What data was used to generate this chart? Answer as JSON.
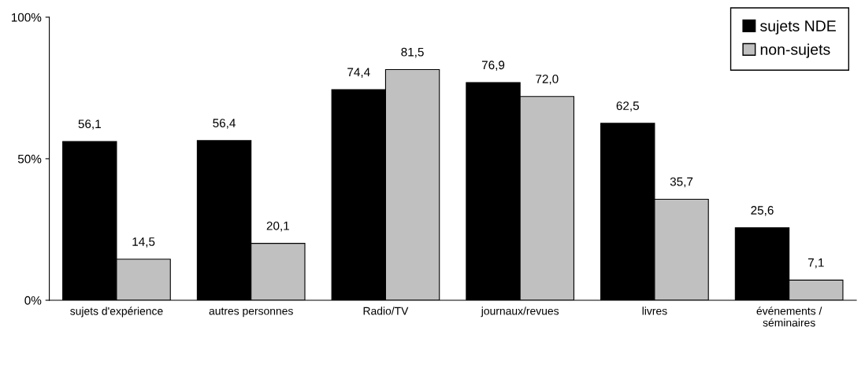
{
  "chart_data": {
    "type": "bar",
    "categories": [
      "sujets d'expérience",
      "autres personnes",
      "Radio/TV",
      "journaux/revues",
      "livres",
      "événements /\nséminaires"
    ],
    "series": [
      {
        "name": "sujets NDE",
        "color": "#000000",
        "values": [
          56.1,
          56.4,
          74.4,
          76.9,
          62.5,
          25.6
        ],
        "value_labels": [
          "56,1",
          "56,4",
          "74,4",
          "76,9",
          "62,5",
          "25,6"
        ]
      },
      {
        "name": "non-sujets",
        "color": "#c0c0c0",
        "values": [
          14.5,
          20.1,
          81.5,
          72.0,
          35.7,
          7.1
        ],
        "value_labels": [
          "14,5",
          "20,1",
          "81,5",
          "72,0",
          "35,7",
          "7,1"
        ]
      }
    ],
    "ylim": [
      0,
      100
    ],
    "yticks": [
      {
        "value": 0,
        "label": "0%"
      },
      {
        "value": 50,
        "label": "50%"
      },
      {
        "value": 100,
        "label": "100%"
      }
    ],
    "grid": false,
    "legend": "top right"
  }
}
